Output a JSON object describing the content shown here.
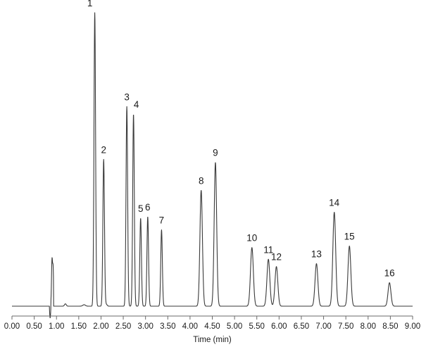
{
  "chart_data": {
    "type": "line",
    "title": "",
    "xlabel": "Time (min)",
    "ylabel": "",
    "xlim": [
      0.0,
      9.0
    ],
    "ylim": [
      0,
      100
    ],
    "x_ticks": [
      "0.00",
      "0.50",
      "1.00",
      "1.50",
      "2.00",
      "2.50",
      "3.00",
      "3.50",
      "4.00",
      "4.50",
      "5.00",
      "5.50",
      "6.00",
      "6.50",
      "7.00",
      "7.50",
      "8.00",
      "8.50",
      "9.00"
    ],
    "x_tick_values": [
      0.0,
      0.5,
      1.0,
      1.5,
      2.0,
      2.5,
      3.0,
      3.5,
      4.0,
      4.5,
      5.0,
      5.5,
      6.0,
      6.5,
      7.0,
      7.5,
      8.0,
      8.5,
      9.0
    ],
    "grid": false,
    "peaks": [
      {
        "label": "1",
        "time": 1.86,
        "height": 100.0
      },
      {
        "label": "2",
        "time": 2.06,
        "height": 50.0
      },
      {
        "label": "3",
        "time": 2.58,
        "height": 68.0
      },
      {
        "label": "4",
        "time": 2.73,
        "height": 65.5
      },
      {
        "label": "5",
        "time": 2.89,
        "height": 30.0
      },
      {
        "label": "6",
        "time": 3.05,
        "height": 30.5
      },
      {
        "label": "7",
        "time": 3.36,
        "height": 26.0
      },
      {
        "label": "8",
        "time": 4.25,
        "height": 39.5
      },
      {
        "label": "9",
        "time": 4.57,
        "height": 49.0
      },
      {
        "label": "10",
        "time": 5.39,
        "height": 20.0
      },
      {
        "label": "11",
        "time": 5.76,
        "height": 16.0
      },
      {
        "label": "12",
        "time": 5.94,
        "height": 13.5
      },
      {
        "label": "13",
        "time": 6.84,
        "height": 14.5
      },
      {
        "label": "14",
        "time": 7.24,
        "height": 32.0
      },
      {
        "label": "15",
        "time": 7.58,
        "height": 20.5
      },
      {
        "label": "16",
        "time": 8.48,
        "height": 8.0
      }
    ],
    "colors": {
      "trace": "#3a3a3a",
      "axis": "#6a6a6a",
      "text": "#1a1a1a"
    }
  }
}
